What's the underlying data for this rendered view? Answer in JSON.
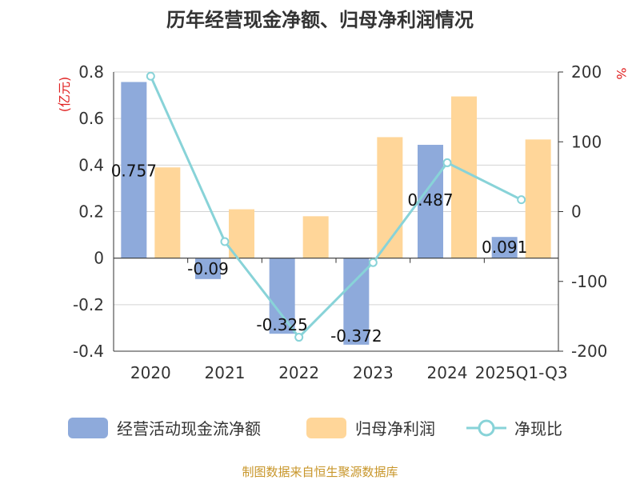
{
  "chart_data": {
    "type": "bar",
    "title": "历年经营现金净额、归母净利润情况",
    "categories": [
      "2020",
      "2021",
      "2022",
      "2023",
      "2024",
      "2025Q1-Q3"
    ],
    "left_axis": {
      "unit": "(亿元)",
      "ylim": [
        -0.4,
        0.8
      ],
      "ticks": [
        0.8,
        0.6,
        0.4,
        0.2,
        0,
        -0.2,
        -0.4
      ],
      "tick_labels": [
        "0.8",
        "0.6",
        "0.4",
        "0.2",
        "0",
        "-0.2",
        "-0.4"
      ]
    },
    "right_axis": {
      "unit": "%",
      "ylim": [
        -200,
        200
      ],
      "ticks": [
        200,
        100,
        0,
        -100,
        -200
      ],
      "tick_labels": [
        "200",
        "100",
        "0",
        "-100",
        "-200"
      ]
    },
    "series": [
      {
        "name": "经营活动现金流净额",
        "type": "bar",
        "axis": "left",
        "color": "#8eaadb",
        "values": [
          0.757,
          -0.09,
          -0.325,
          -0.372,
          0.487,
          0.091
        ],
        "labels": [
          "0.757",
          "-0.09",
          "-0.325",
          "-0.372",
          "0.487",
          "0.091"
        ]
      },
      {
        "name": "归母净利润",
        "type": "bar",
        "axis": "left",
        "color": "#ffd699",
        "values": [
          0.39,
          0.21,
          0.18,
          0.52,
          0.695,
          0.51
        ]
      },
      {
        "name": "净现比",
        "type": "line",
        "axis": "right",
        "color": "#88d3d8",
        "values": [
          194,
          -43,
          -180,
          -73,
          70,
          17
        ]
      }
    ],
    "legend_position": "bottom",
    "source": "制图数据来自恒生聚源数据库"
  }
}
